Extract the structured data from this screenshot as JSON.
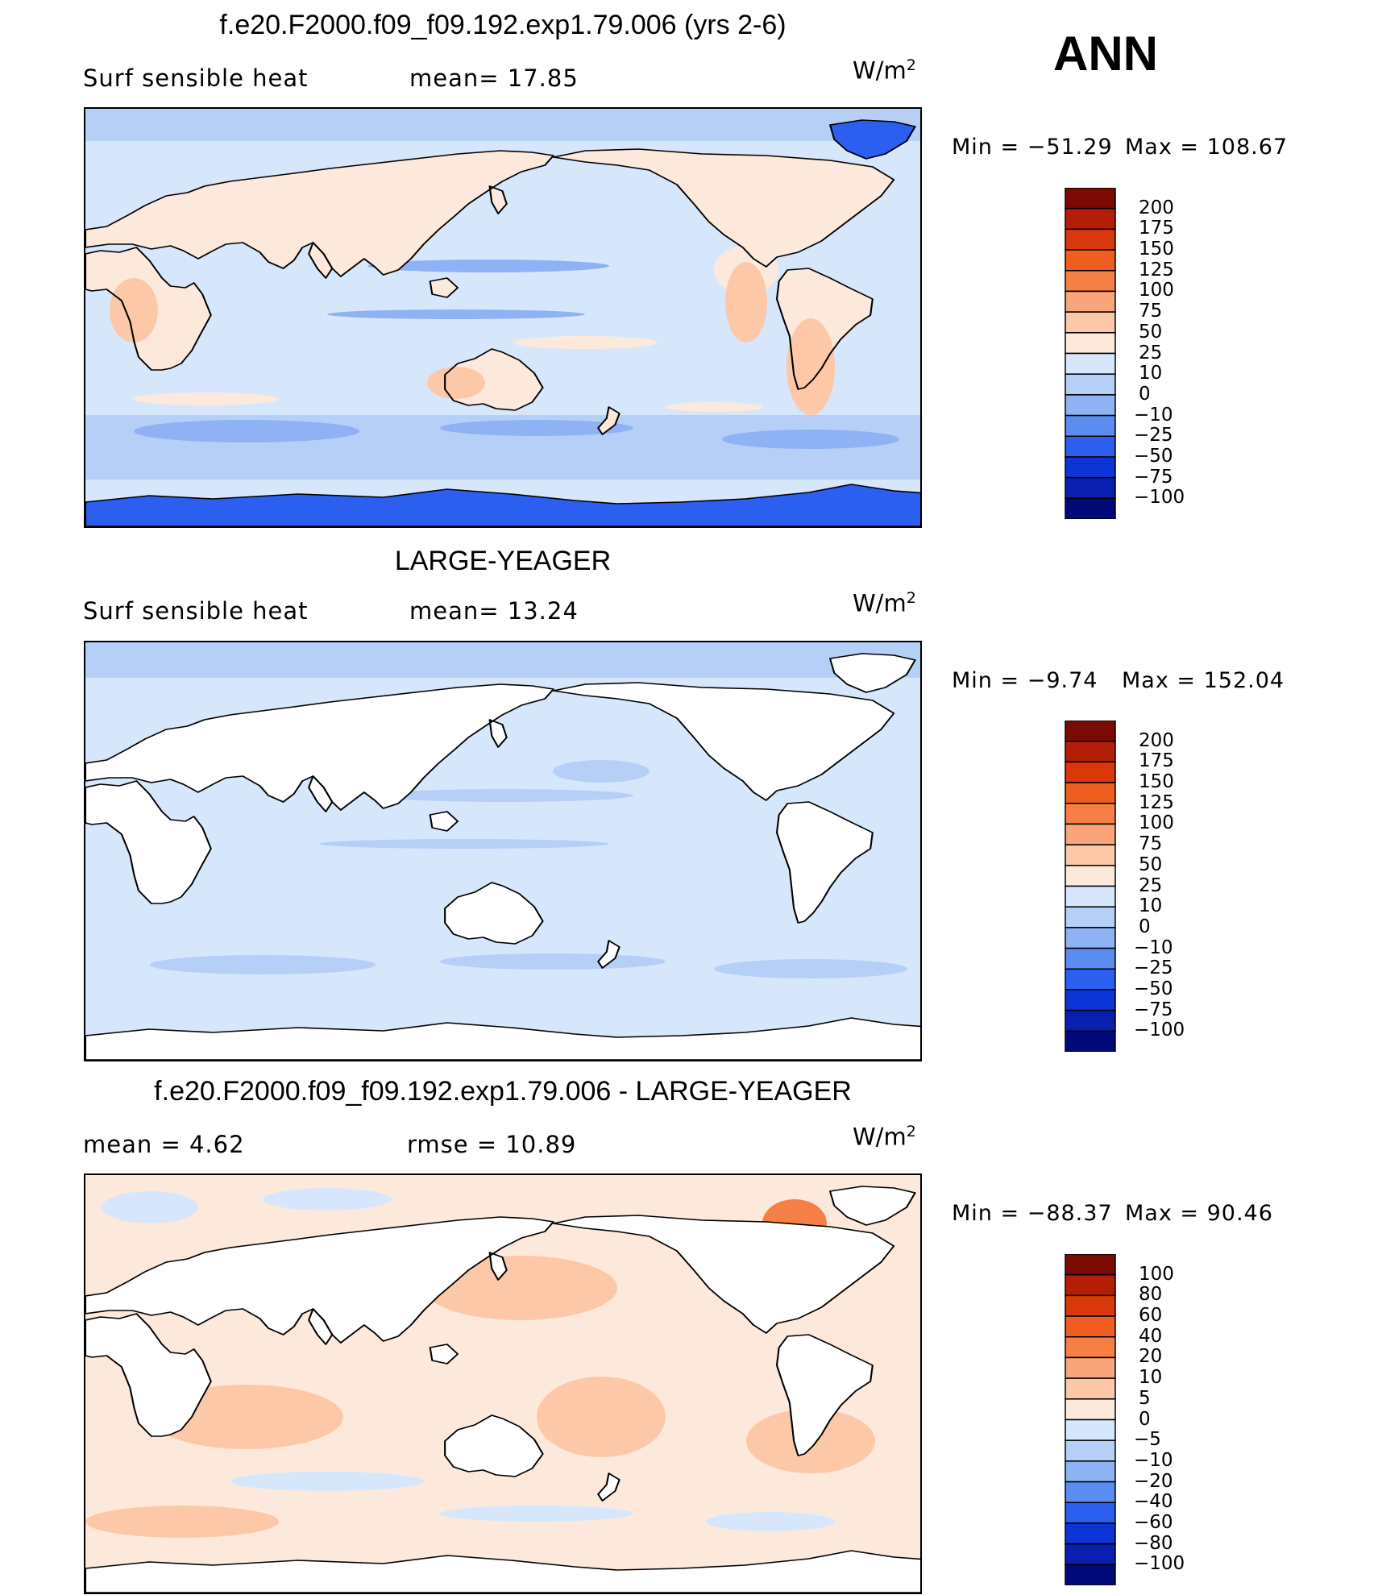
{
  "season": "ANN",
  "units_base": "W/m",
  "units_exp": "2",
  "panels": [
    {
      "title": "f.e20.F2000.f09_f09.192.exp1.79.006 (yrs 2-6)",
      "left_text": "Surf  sensible  heat",
      "mean_text": "mean=   17.85",
      "min_text": "Min  =  −51.29",
      "max_text": "Max  =  108.67",
      "palette": "full",
      "colorbar": {
        "labels": [
          "200",
          "175",
          "150",
          "125",
          "100",
          "75",
          "50",
          "25",
          "10",
          "0",
          "−10",
          "−25",
          "−50",
          "−75",
          "−100"
        ],
        "colors": [
          "#7a0a03",
          "#b31e06",
          "#d9380b",
          "#f05e1f",
          "#f57f45",
          "#f8a57c",
          "#fcc8a8",
          "#fde9dc",
          "#d7e7fb",
          "#b6cff7",
          "#8eb2f3",
          "#5b8cf0",
          "#2a5ff0",
          "#0d35d6",
          "#0a1eb0",
          "#020a7a"
        ]
      }
    },
    {
      "title": "LARGE-YEAGER",
      "left_text": "Surf  sensible  heat",
      "mean_text": "mean=   13.24",
      "min_text": "Min  =   −9.74",
      "max_text": "Max  =  152.04",
      "palette": "ocean",
      "colorbar": {
        "labels": [
          "200",
          "175",
          "150",
          "125",
          "100",
          "75",
          "50",
          "25",
          "10",
          "0",
          "−10",
          "−25",
          "−50",
          "−75",
          "−100"
        ],
        "colors": [
          "#7a0a03",
          "#b31e06",
          "#d9380b",
          "#f05e1f",
          "#f57f45",
          "#f8a57c",
          "#fcc8a8",
          "#fde9dc",
          "#d7e7fb",
          "#b6cff7",
          "#8eb2f3",
          "#5b8cf0",
          "#2a5ff0",
          "#0d35d6",
          "#0a1eb0",
          "#020a7a"
        ]
      }
    },
    {
      "title": "f.e20.F2000.f09_f09.192.exp1.79.006 - LARGE-YEAGER",
      "left_text": "mean  =     4.62",
      "mean_text": "rmse  =     10.89",
      "min_text": "Min  =  −88.37",
      "max_text": "Max  =    90.46",
      "palette": "diff",
      "colorbar": {
        "labels": [
          "100",
          "80",
          "60",
          "40",
          "20",
          "10",
          "5",
          "0",
          "−5",
          "−10",
          "−20",
          "−40",
          "−60",
          "−80",
          "−100"
        ],
        "colors": [
          "#7a0a03",
          "#b31e06",
          "#d9380b",
          "#f05e1f",
          "#f57f45",
          "#f8a57c",
          "#fcc8a8",
          "#fde9dc",
          "#d7e7fb",
          "#b6cff7",
          "#8eb2f3",
          "#5b8cf0",
          "#2a5ff0",
          "#0d35d6",
          "#0a1eb0",
          "#020a7a"
        ]
      }
    }
  ]
}
